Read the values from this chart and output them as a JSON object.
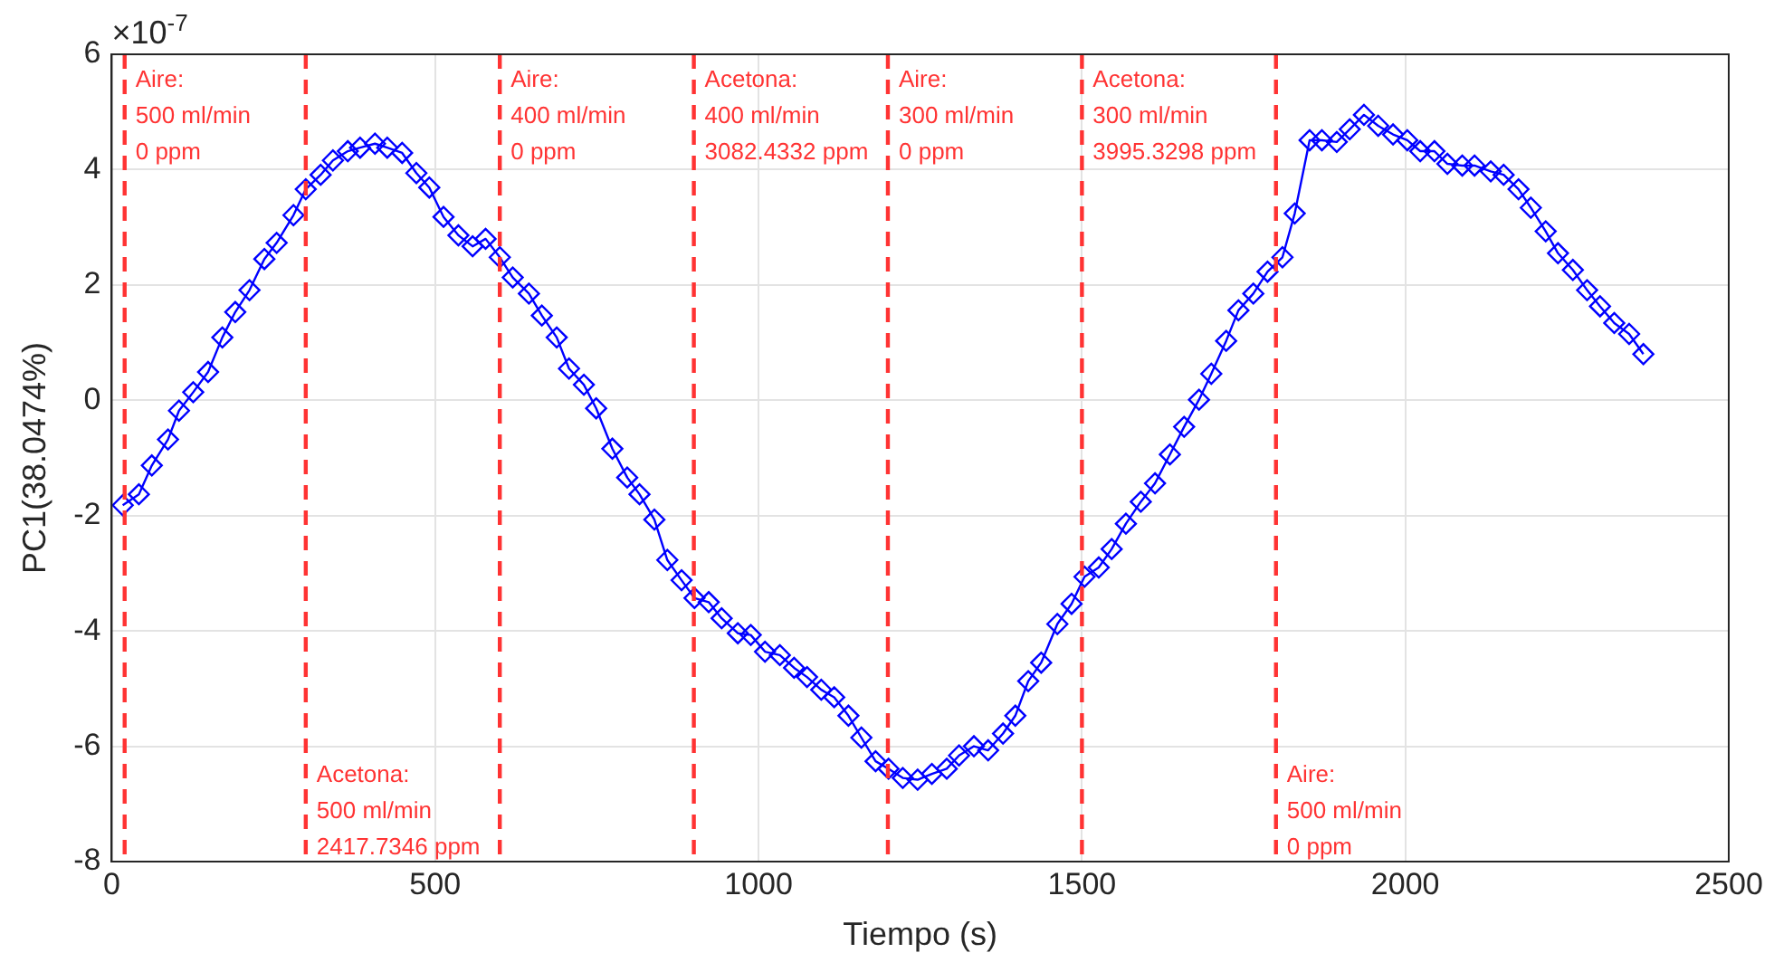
{
  "chart_data": {
    "type": "line",
    "xlabel": "Tiempo (s)",
    "ylabel": "PC1(38.0474%)",
    "annotations": [
      "×10$^{-7}$",
      {
        "text": "Aire:\n500 ml/min\n0 ppm",
        "x": 20,
        "y": 5.75
      },
      {
        "text": "Acetona:\n500 ml/min\n2417.7346 ppm",
        "x": 300,
        "y": -6.3
      },
      {
        "text": "Aire:\n400 ml/min\n0 ppm",
        "x": 600,
        "y": 5.75
      },
      {
        "text": "Acetona:\n400 ml/min\n3082.4332 ppm",
        "x": 900,
        "y": 5.75
      },
      {
        "text": "Aire:\n300 ml/min\n0 ppm",
        "x": 1200,
        "y": 5.75
      },
      {
        "text": "Acetona:\n300 ml/min\n3995.3298 ppm",
        "x": 1500,
        "y": 5.75
      },
      {
        "text": "Aire:\n500 ml/min\n0 ppm",
        "x": 1800,
        "y": -6.3
      }
    ],
    "xlim": [
      0,
      2500
    ],
    "xticks": [
      0,
      500,
      1000,
      1500,
      2000,
      2500
    ],
    "ylim": [
      -8,
      6
    ],
    "yticks": [
      -8,
      -6,
      -4,
      -2,
      0,
      2,
      4,
      6
    ],
    "grid": true,
    "legend": false,
    "marker": "diamond",
    "line_style": "solid",
    "series": [
      {
        "color": "#0000ff",
        "x": [
          17,
          42,
          62,
          87,
          104,
          126,
          149,
          171,
          191,
          213,
          236,
          255,
          281,
          300,
          323,
          342,
          365,
          384,
          407,
          426,
          449,
          471,
          491,
          513,
          536,
          558,
          578,
          600,
          620,
          645,
          665,
          688,
          707,
          730,
          749,
          774,
          797,
          816,
          839,
          859,
          881,
          901,
          923,
          943,
          968,
          988,
          1010,
          1033,
          1055,
          1075,
          1097,
          1117,
          1139,
          1159,
          1181,
          1201,
          1223,
          1246,
          1268,
          1291,
          1310,
          1333,
          1355,
          1378,
          1397,
          1417,
          1437,
          1462,
          1484,
          1504,
          1526,
          1546,
          1568,
          1591,
          1613,
          1636,
          1658,
          1681,
          1700,
          1723,
          1742,
          1765,
          1787,
          1810,
          1829,
          1852,
          1871,
          1894,
          1914,
          1936,
          1958,
          1981,
          2003,
          2023,
          2045,
          2065,
          2088,
          2107,
          2132,
          2152,
          2175,
          2194,
          2217,
          2236,
          2259,
          2281,
          2301,
          2323,
          2346,
          2368
        ],
        "values": [
          -1.82,
          -1.63,
          -1.13,
          -0.68,
          -0.18,
          0.14,
          0.49,
          1.09,
          1.53,
          1.91,
          2.45,
          2.73,
          3.21,
          3.66,
          3.91,
          4.16,
          4.32,
          4.38,
          4.45,
          4.38,
          4.29,
          3.94,
          3.69,
          3.18,
          2.86,
          2.67,
          2.8,
          2.48,
          2.13,
          1.85,
          1.47,
          1.09,
          0.55,
          0.27,
          -0.14,
          -0.84,
          -1.34,
          -1.63,
          -2.07,
          -2.77,
          -3.12,
          -3.43,
          -3.5,
          -3.78,
          -4.04,
          -4.07,
          -4.36,
          -4.42,
          -4.64,
          -4.8,
          -5.02,
          -5.15,
          -5.47,
          -5.85,
          -6.26,
          -6.39,
          -6.55,
          -6.58,
          -6.48,
          -6.39,
          -6.16,
          -6,
          -6.07,
          -5.78,
          -5.47,
          -4.87,
          -4.55,
          -3.88,
          -3.53,
          -3.06,
          -2.9,
          -2.58,
          -2.14,
          -1.76,
          -1.44,
          -0.94,
          -0.46,
          0.01,
          0.46,
          1.03,
          1.56,
          1.85,
          2.23,
          2.48,
          3.24,
          4.51,
          4.51,
          4.48,
          4.7,
          4.95,
          4.76,
          4.61,
          4.51,
          4.32,
          4.32,
          4.1,
          4.07,
          4.07,
          3.97,
          3.91,
          3.66,
          3.34,
          2.93,
          2.55,
          2.26,
          1.91,
          1.63,
          1.34,
          1.15,
          0.8
        ]
      }
    ],
    "ref_lines": [
      {
        "axis": "x",
        "value": 20,
        "color": "#ff3333",
        "line_style": "dashed"
      },
      {
        "axis": "x",
        "value": 300,
        "color": "#ff3333",
        "line_style": "dashed"
      },
      {
        "axis": "x",
        "value": 600,
        "color": "#ff3333",
        "line_style": "dashed"
      },
      {
        "axis": "x",
        "value": 900,
        "color": "#ff3333",
        "line_style": "dashed"
      },
      {
        "axis": "x",
        "value": 1200,
        "color": "#ff3333",
        "line_style": "dashed"
      },
      {
        "axis": "x",
        "value": 1500,
        "color": "#ff3333",
        "line_style": "dashed"
      },
      {
        "axis": "x",
        "value": 1800,
        "color": "#ff3333",
        "line_style": "dashed"
      }
    ]
  }
}
